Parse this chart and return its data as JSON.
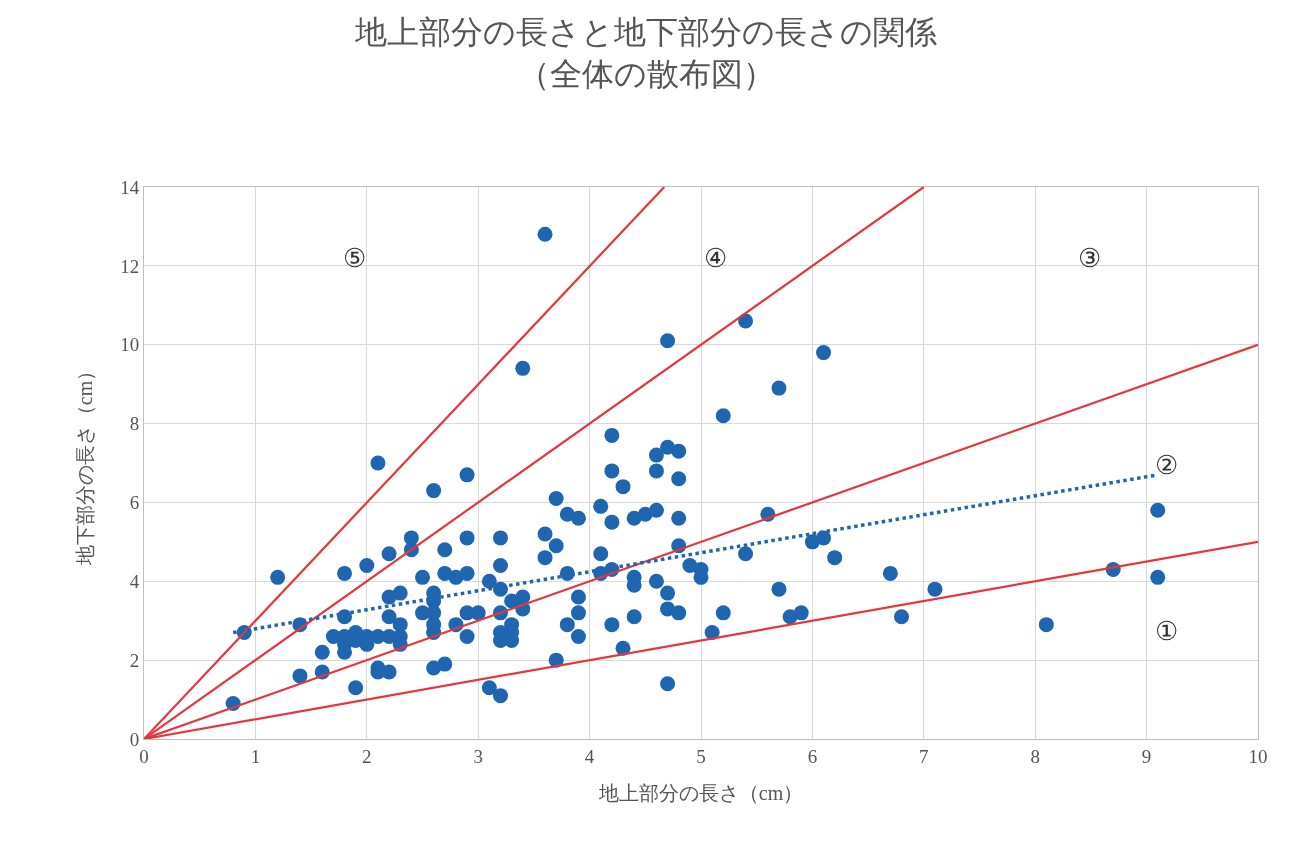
{
  "chart_data": {
    "type": "scatter",
    "title": "地上部分の長さと地下部分の長さの関係",
    "subtitle": "（全体の散布図）",
    "xlabel": "地上部分の長さ（cm）",
    "ylabel": "地下部分の長さ（cm）",
    "xlim": [
      0,
      10
    ],
    "xticks": [
      0,
      1,
      2,
      3,
      4,
      5,
      6,
      7,
      8,
      9,
      10
    ],
    "ylim": [
      0,
      14
    ],
    "yticks": [
      0,
      2,
      4,
      6,
      8,
      10,
      12,
      14
    ],
    "grid": true,
    "series": [
      {
        "color": "#1f65b0",
        "marker": "circle",
        "x": [
          0.8,
          0.9,
          1.2,
          1.4,
          1.4,
          1.6,
          1.6,
          1.7,
          1.8,
          1.8,
          1.8,
          1.8,
          1.8,
          1.9,
          1.9,
          1.9,
          2.0,
          2.0,
          2.0,
          2.1,
          2.1,
          2.1,
          2.1,
          2.2,
          2.2,
          2.2,
          2.2,
          2.2,
          2.3,
          2.3,
          2.3,
          2.3,
          2.4,
          2.4,
          2.5,
          2.5,
          2.6,
          2.6,
          2.6,
          2.6,
          2.6,
          2.6,
          2.6,
          2.7,
          2.7,
          2.7,
          2.8,
          2.8,
          2.9,
          2.9,
          2.9,
          2.9,
          2.9,
          3.0,
          3.1,
          3.1,
          3.2,
          3.2,
          3.2,
          3.2,
          3.2,
          3.2,
          3.2,
          3.3,
          3.3,
          3.3,
          3.3,
          3.4,
          3.4,
          3.4,
          3.6,
          3.6,
          3.6,
          3.7,
          3.7,
          3.7,
          3.8,
          3.8,
          3.8,
          3.9,
          3.9,
          3.9,
          3.9,
          4.1,
          4.1,
          4.1,
          4.2,
          4.2,
          4.2,
          4.2,
          4.2,
          4.3,
          4.3,
          4.4,
          4.4,
          4.4,
          4.4,
          4.5,
          4.6,
          4.6,
          4.6,
          4.6,
          4.7,
          4.7,
          4.7,
          4.7,
          4.7,
          4.8,
          4.8,
          4.8,
          4.8,
          4.8,
          4.9,
          5.0,
          5.0,
          5.1,
          5.2,
          5.2,
          5.4,
          5.4,
          5.6,
          5.7,
          5.7,
          5.8,
          5.9,
          6.0,
          6.1,
          6.1,
          6.2,
          6.7,
          6.8,
          7.1,
          8.1,
          8.7,
          9.1,
          9.1
        ],
        "values": [
          0.9,
          2.7,
          4.1,
          2.9,
          1.6,
          2.2,
          1.7,
          2.6,
          4.2,
          3.1,
          2.6,
          2.4,
          2.2,
          2.7,
          2.5,
          1.3,
          2.6,
          2.4,
          4.4,
          2.6,
          7.0,
          1.8,
          1.7,
          4.7,
          3.6,
          3.1,
          2.6,
          1.7,
          3.7,
          2.9,
          2.6,
          2.4,
          5.1,
          4.8,
          4.1,
          3.2,
          6.3,
          3.7,
          3.5,
          3.2,
          2.9,
          2.7,
          1.8,
          4.8,
          4.2,
          1.9,
          4.1,
          2.9,
          6.7,
          5.1,
          4.2,
          3.2,
          2.6,
          3.2,
          4.0,
          1.3,
          5.1,
          4.4,
          3.8,
          3.2,
          2.7,
          2.5,
          1.1,
          3.5,
          2.9,
          2.7,
          2.5,
          3.6,
          3.3,
          9.4,
          5.2,
          4.6,
          12.8,
          6.1,
          4.9,
          2.0,
          5.7,
          4.2,
          2.9,
          5.6,
          3.6,
          3.2,
          2.6,
          5.9,
          4.7,
          4.2,
          7.7,
          6.8,
          5.5,
          4.3,
          2.9,
          6.4,
          2.3,
          5.6,
          4.1,
          3.9,
          3.1,
          5.7,
          7.2,
          6.8,
          5.8,
          4.0,
          7.4,
          10.1,
          3.7,
          3.3,
          1.4,
          7.3,
          6.6,
          5.6,
          4.9,
          3.2,
          4.4,
          4.3,
          4.1,
          2.7,
          8.2,
          3.2,
          10.6,
          4.7,
          5.7,
          8.9,
          3.8,
          3.1,
          3.2,
          5.0,
          9.8,
          5.1,
          4.6,
          4.2,
          3.1,
          3.8,
          2.9,
          4.3,
          5.8,
          4.1
        ]
      },
      {
        "type": "line",
        "color": "#e8343c",
        "line_style": "solid",
        "x": [
          0,
          10
        ],
        "values": [
          0,
          5
        ]
      },
      {
        "type": "line",
        "color": "#e8343c",
        "line_style": "solid",
        "x": [
          0,
          10
        ],
        "values": [
          0,
          10
        ]
      },
      {
        "type": "line",
        "color": "#e8343c",
        "line_style": "solid",
        "x": [
          0,
          7
        ],
        "values": [
          0,
          14
        ]
      },
      {
        "type": "line",
        "color": "#e8343c",
        "line_style": "solid",
        "x": [
          0,
          4.67
        ],
        "values": [
          0,
          14
        ]
      },
      {
        "type": "line",
        "color": "#1f65b0",
        "line_style": "dotted",
        "x": [
          0.8,
          9.1
        ],
        "values": [
          2.7,
          6.7
        ]
      }
    ],
    "annotations": [
      "①",
      "②",
      "③",
      "④",
      "⑤"
    ]
  }
}
